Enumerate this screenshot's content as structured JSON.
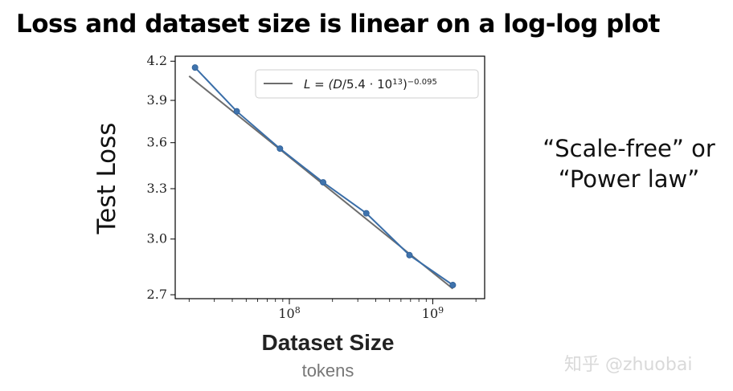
{
  "slide": {
    "title": "Loss and dataset size is linear on a log-log plot",
    "side_note_line1": "“Scale-free” or",
    "side_note_line2": "“Power law”",
    "watermark": "知乎 @zhuobai"
  },
  "colors": {
    "data_line": "#3a6ea8",
    "data_marker": "#3f73ad",
    "fit_line": "#6d6d6d",
    "axes": "#000000"
  },
  "chart_data": {
    "type": "line",
    "x_scale": "log",
    "y_scale": "log",
    "xlabel": "Dataset Size",
    "xunit": "tokens",
    "ylabel": "Test Loss",
    "xlim": [
      16000000,
      2300000000
    ],
    "ylim": [
      2.68,
      4.24
    ],
    "x_ticks": [
      {
        "value": 100000000,
        "base": "10",
        "exp": "8"
      },
      {
        "value": 1000000000,
        "base": "10",
        "exp": "9"
      }
    ],
    "y_ticks": [
      2.7,
      3.0,
      3.3,
      3.6,
      3.9,
      4.2
    ],
    "y_tick_labels": [
      "2.7",
      "3.0",
      "3.3",
      "3.6",
      "3.9",
      "4.2"
    ],
    "series": [
      {
        "x": [
          22000000,
          43000000,
          86000000,
          172000000,
          344000000,
          688000000,
          1380000000
        ],
        "y": [
          4.15,
          3.82,
          3.56,
          3.34,
          3.15,
          2.91,
          2.75
        ],
        "marker": "circle"
      }
    ],
    "fit": {
      "formula": "L = (D/5.4·10^13)^-0.095",
      "legend_parts": {
        "lhs": "L = (",
        "var": "D",
        "mid": "/5.4 · 10",
        "sup1": "13",
        "rp": ")",
        "sup2": "−0.095"
      },
      "D0": 54000000000000,
      "alpha": 0.095,
      "x_range": [
        20000000,
        1380000000
      ]
    },
    "legend_position": "top-right",
    "grid": false
  }
}
